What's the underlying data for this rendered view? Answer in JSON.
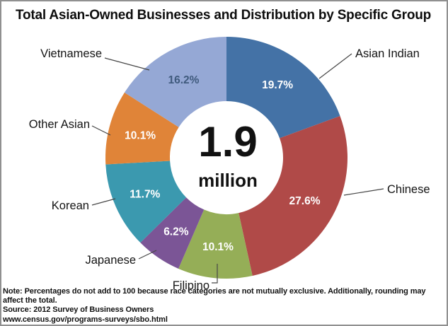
{
  "title": "Total Asian-Owned Businesses and Distribution by Specific Group",
  "center": {
    "value": "1.9",
    "unit": "million"
  },
  "chart_data": {
    "type": "pie",
    "subtype": "donut",
    "title": "Total Asian-Owned Businesses and Distribution by Specific Group",
    "center_text": "1.9 million",
    "start_angle_deg": 0,
    "direction": "clockwise",
    "legend_position": "outside-labels-with-leader-lines",
    "slices": [
      {
        "label": "Asian Indian",
        "value": 19.7,
        "display": "19.7%",
        "color": "#4472A6",
        "pct_color": "#FFFFFF"
      },
      {
        "label": "Chinese",
        "value": 27.6,
        "display": "27.6%",
        "color": "#B04A48",
        "pct_color": "#FFFFFF"
      },
      {
        "label": "Filipino",
        "value": 10.1,
        "display": "10.1%",
        "color": "#95AE57",
        "pct_color": "#FFFFFF"
      },
      {
        "label": "Japanese",
        "value": 6.2,
        "display": "6.2%",
        "color": "#7B5596",
        "pct_color": "#FFFFFF"
      },
      {
        "label": "Korean",
        "value": 11.7,
        "display": "11.7%",
        "color": "#3B99AF",
        "pct_color": "#FFFFFF"
      },
      {
        "label": "Other Asian",
        "value": 10.1,
        "display": "10.1%",
        "color": "#E08438",
        "pct_color": "#FFFFFF"
      },
      {
        "label": "Vietnamese",
        "value": 16.2,
        "display": "16.2%",
        "color": "#95A8D5",
        "pct_color": "#3F5A7D"
      }
    ]
  },
  "notes": {
    "note": "Note: Percentages do not add to 100 because race categories are not mutually exclusive. Additionally, rounding may affect the total.",
    "source": "Source: 2012 Survey of Business Owners",
    "url": "www.census.gov/programs-surveys/sbo.html"
  }
}
